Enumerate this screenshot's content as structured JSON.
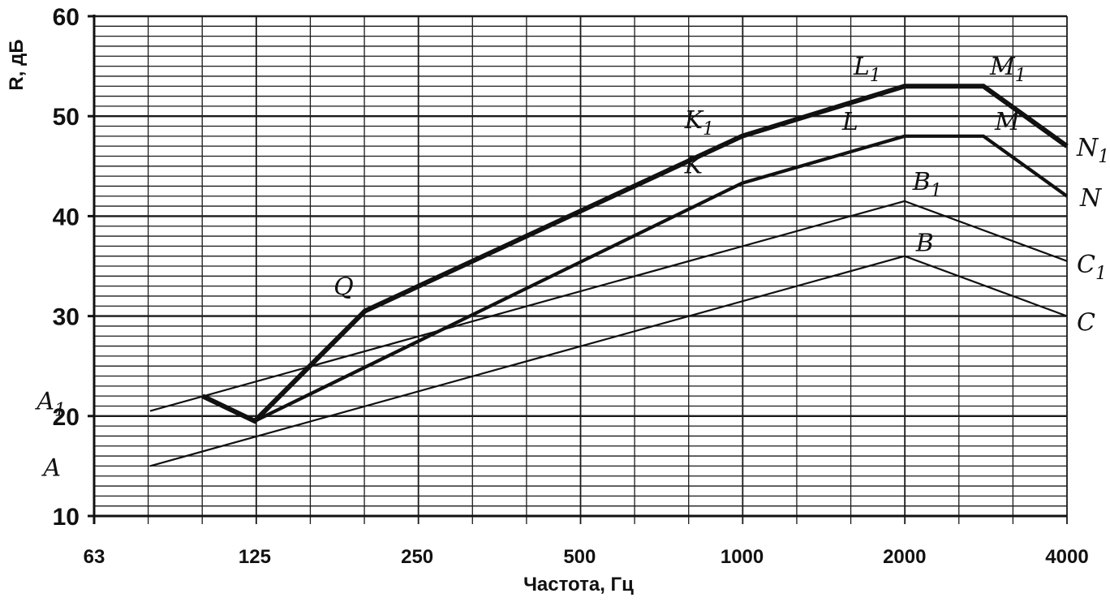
{
  "chart_data": {
    "type": "line",
    "xlabel": "Частота, Гц",
    "ylabel": "R, дБ",
    "x_scale": "log2",
    "xlim": [
      63,
      4000
    ],
    "ylim": [
      10,
      60
    ],
    "x_ticks": [
      {
        "value": 63,
        "label": "63"
      },
      {
        "value": 125,
        "label": "125"
      },
      {
        "value": 250,
        "label": "250"
      },
      {
        "value": 500,
        "label": "500"
      },
      {
        "value": 1000,
        "label": "1000"
      },
      {
        "value": 2000,
        "label": "2000"
      },
      {
        "value": 4000,
        "label": "4000"
      }
    ],
    "y_ticks": [
      10,
      20,
      30,
      40,
      50,
      60
    ],
    "grid": true,
    "series": [
      {
        "style": "thin",
        "points": [
          {
            "x": 80,
            "y": 15,
            "label": "A"
          },
          {
            "x": 2000,
            "y": 36,
            "label": "B"
          },
          {
            "x": 4000,
            "y": 30,
            "label": "C"
          }
        ]
      },
      {
        "style": "thin",
        "points": [
          {
            "x": 80,
            "y": 20.5,
            "label": "A1"
          },
          {
            "x": 2000,
            "y": 41.5,
            "label": "B1"
          },
          {
            "x": 4000,
            "y": 35.5,
            "label": "C1"
          }
        ]
      },
      {
        "style": "medium",
        "points": [
          {
            "x": 100,
            "y": 22,
            "label": ""
          },
          {
            "x": 125,
            "y": 19.5,
            "label": ""
          },
          {
            "x": 1000,
            "y": 43.3,
            "label": "K"
          },
          {
            "x": 2000,
            "y": 48,
            "label": "L"
          },
          {
            "x": 2800,
            "y": 48,
            "label": "M"
          },
          {
            "x": 4000,
            "y": 42,
            "label": "N"
          }
        ]
      },
      {
        "style": "thick",
        "points": [
          {
            "x": 100,
            "y": 22,
            "label": ""
          },
          {
            "x": 125,
            "y": 19.5,
            "label": ""
          },
          {
            "x": 200,
            "y": 30.5,
            "label": "Q"
          },
          {
            "x": 1000,
            "y": 48,
            "label": "K1"
          },
          {
            "x": 2000,
            "y": 53,
            "label": "L1"
          },
          {
            "x": 2800,
            "y": 53,
            "label": "M1"
          },
          {
            "x": 4000,
            "y": 47,
            "label": "N1"
          }
        ]
      }
    ],
    "labels": [
      {
        "text": "A",
        "x": 62,
        "y": 15
      },
      {
        "text": "A1",
        "x": 62,
        "y": 20.5
      },
      {
        "text": "B",
        "x": 2000,
        "y": 36
      },
      {
        "text": "B1",
        "x": 2000,
        "y": 41.5
      },
      {
        "text": "C",
        "x": 4000,
        "y": 30
      },
      {
        "text": "C1",
        "x": 4000,
        "y": 35.5
      },
      {
        "text": "K",
        "x": 850,
        "y": 43.5
      },
      {
        "text": "K1",
        "x": 850,
        "y": 48
      },
      {
        "text": "L",
        "x": 1700,
        "y": 48
      },
      {
        "text": "L1",
        "x": 1700,
        "y": 53
      },
      {
        "text": "M",
        "x": 2800,
        "y": 48
      },
      {
        "text": "M1",
        "x": 2800,
        "y": 53
      },
      {
        "text": "N",
        "x": 4000,
        "y": 42
      },
      {
        "text": "N1",
        "x": 4000,
        "y": 47
      },
      {
        "text": "Q",
        "x": 175,
        "y": 30.5
      }
    ],
    "colors": {
      "line": "#111111",
      "grid": "#1a1a1a",
      "background": "#ffffff"
    }
  }
}
